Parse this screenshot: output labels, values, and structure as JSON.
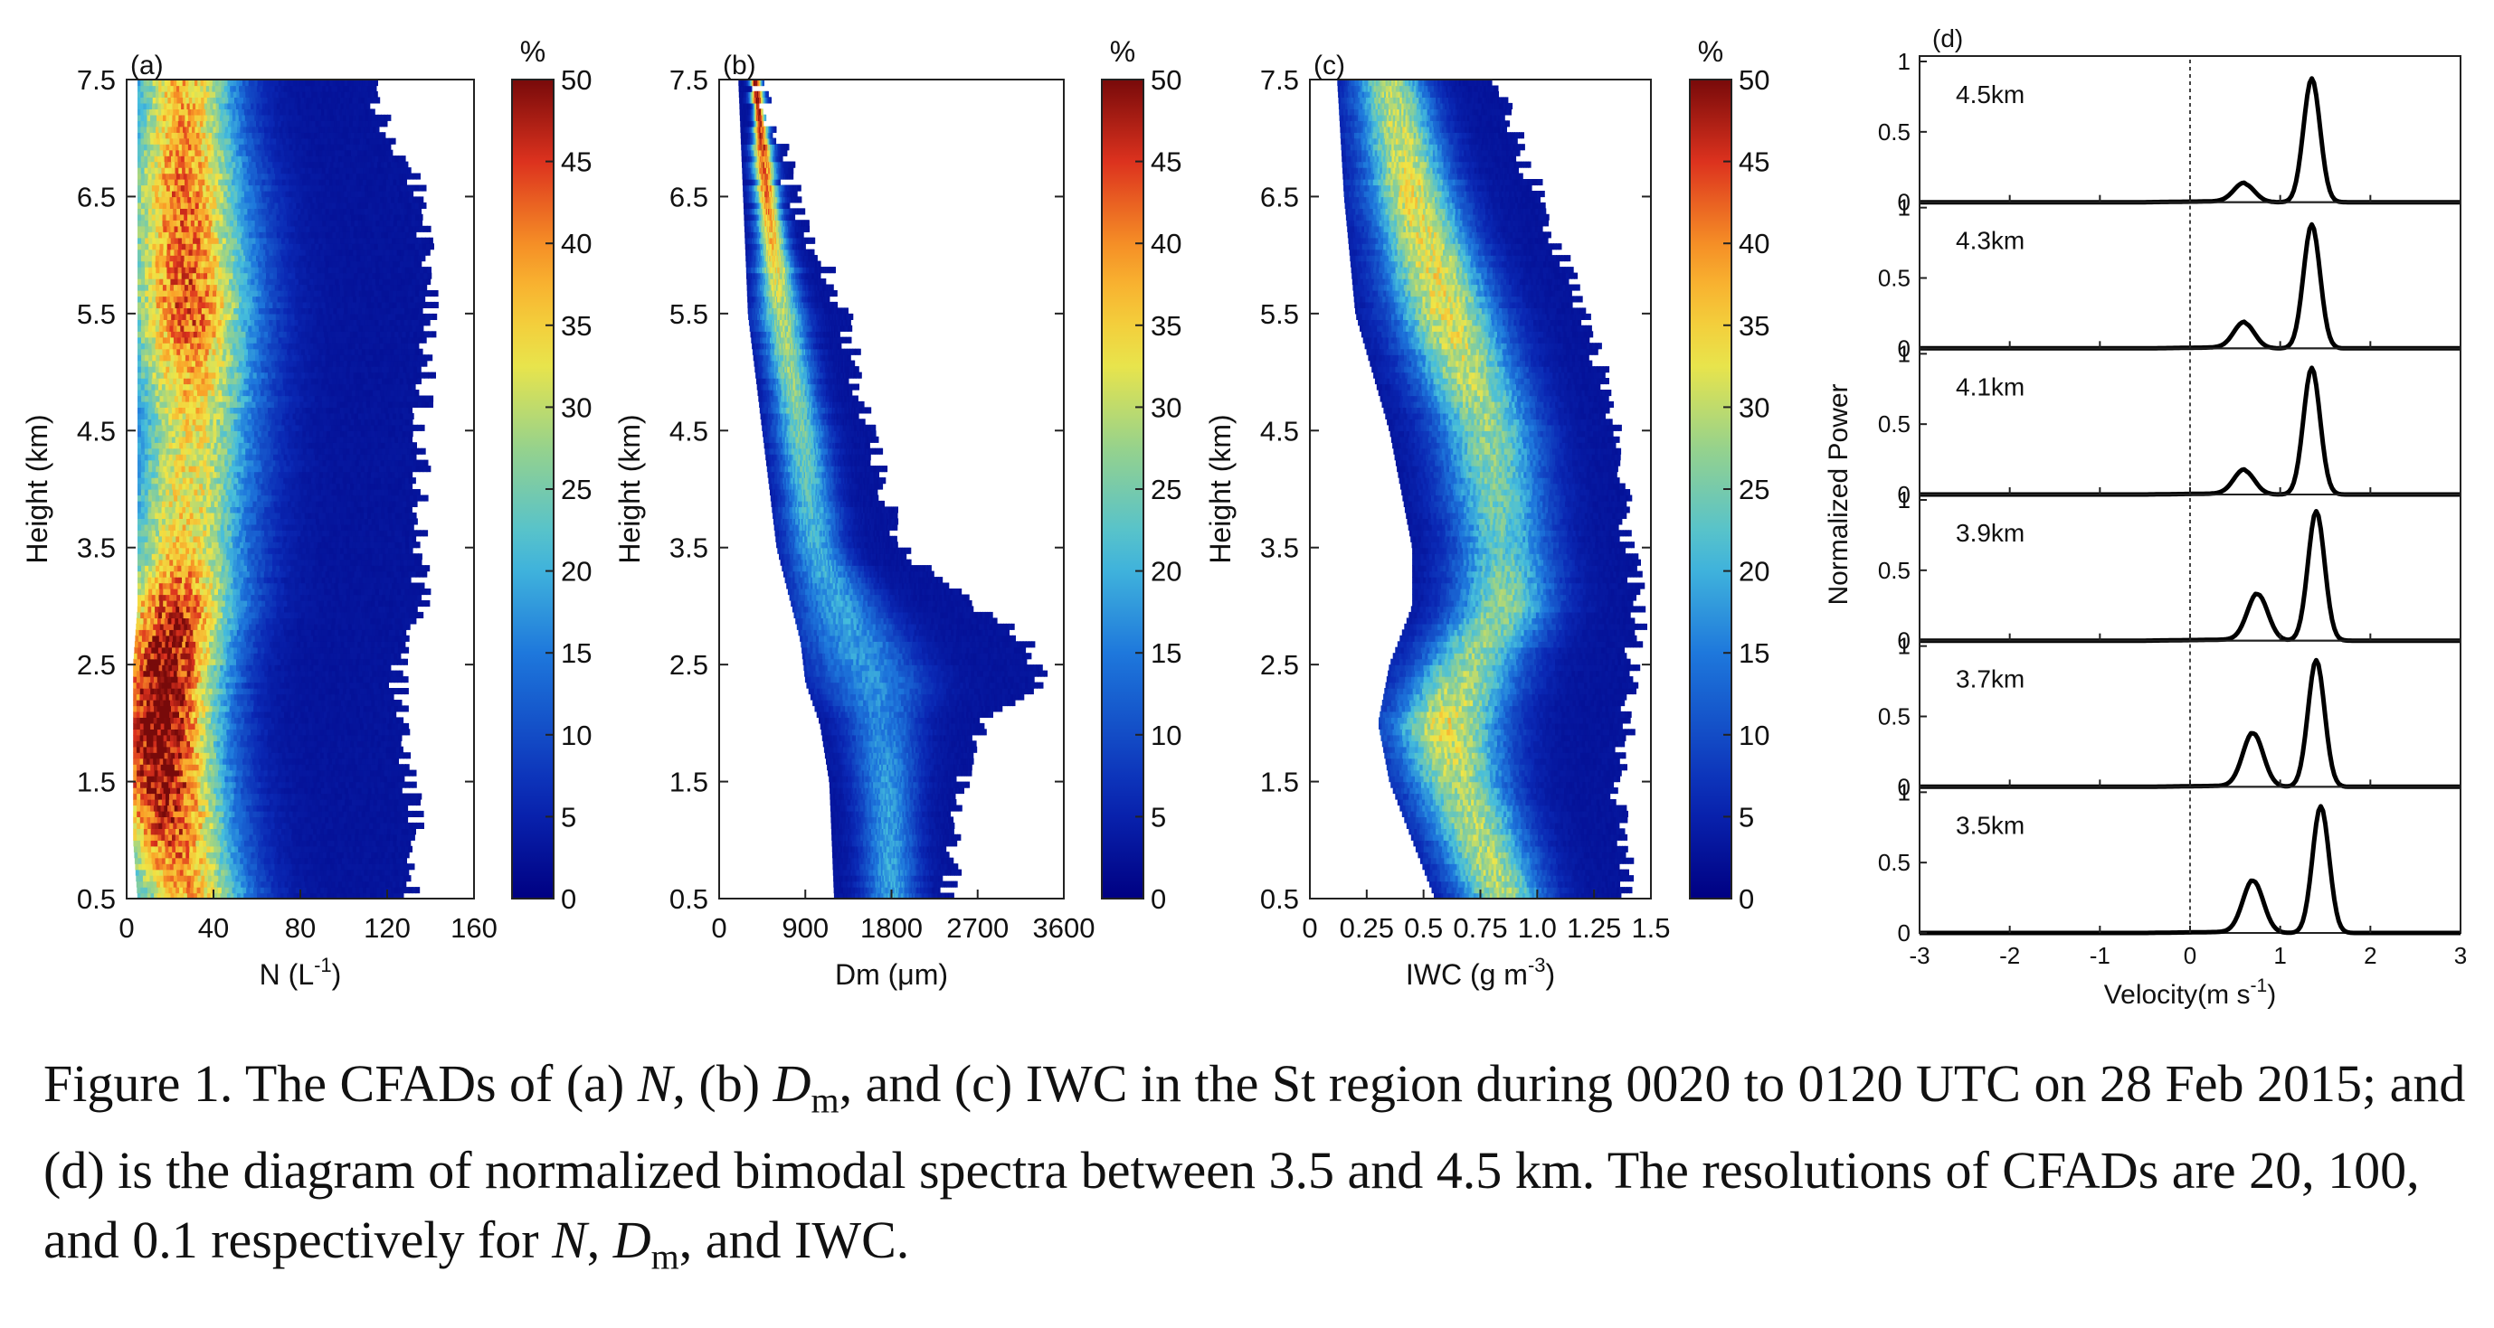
{
  "chart_data": [
    {
      "type": "heatmap",
      "panel_label": "(a)",
      "xlabel_main": "N (L",
      "xlabel_sup": "-1",
      "xlabel_end": ")",
      "ylabel": "Height (km)",
      "xlim": [
        0,
        160
      ],
      "ylim": [
        0.5,
        7.5
      ],
      "xticks": [
        "0",
        "40",
        "80",
        "120",
        "160"
      ],
      "yticks": [
        "0.5",
        "1.5",
        "2.5",
        "3.5",
        "4.5",
        "5.5",
        "6.5",
        "7.5"
      ],
      "colorbar": {
        "label": "%",
        "range": [
          0,
          50
        ],
        "ticks": [
          "0",
          "5",
          "10",
          "15",
          "20",
          "25",
          "30",
          "35",
          "40",
          "45",
          "50"
        ]
      },
      "profile": [
        {
          "height": 0.5,
          "peak_x": 28,
          "peak_pct": 34,
          "min_x": 5,
          "max_x": 135
        },
        {
          "height": 1.0,
          "peak_x": 20,
          "peak_pct": 40,
          "min_x": 3,
          "max_x": 140
        },
        {
          "height": 1.5,
          "peak_x": 16,
          "peak_pct": 46,
          "min_x": 3,
          "max_x": 135
        },
        {
          "height": 2.0,
          "peak_x": 15,
          "peak_pct": 49,
          "min_x": 3,
          "max_x": 130
        },
        {
          "height": 2.5,
          "peak_x": 18,
          "peak_pct": 47,
          "min_x": 3,
          "max_x": 130
        },
        {
          "height": 3.0,
          "peak_x": 22,
          "peak_pct": 42,
          "min_x": 5,
          "max_x": 140
        },
        {
          "height": 3.5,
          "peak_x": 26,
          "peak_pct": 32,
          "min_x": 5,
          "max_x": 140
        },
        {
          "height": 4.5,
          "peak_x": 30,
          "peak_pct": 30,
          "min_x": 5,
          "max_x": 140
        },
        {
          "height": 5.5,
          "peak_x": 28,
          "peak_pct": 40,
          "min_x": 5,
          "max_x": 145
        },
        {
          "height": 6.5,
          "peak_x": 26,
          "peak_pct": 38,
          "min_x": 5,
          "max_x": 140
        },
        {
          "height": 7.5,
          "peak_x": 26,
          "peak_pct": 34,
          "min_x": 5,
          "max_x": 115
        }
      ]
    },
    {
      "type": "heatmap",
      "panel_label": "(b)",
      "xlabel_main": "Dm (",
      "xlabel_mu": "μ",
      "xlabel_end": "m)",
      "ylabel": "Height (km)",
      "xlim": [
        0,
        3600
      ],
      "ylim": [
        0.5,
        7.5
      ],
      "xticks": [
        "0",
        "900",
        "1800",
        "2700",
        "3600"
      ],
      "yticks": [
        "0.5",
        "1.5",
        "2.5",
        "3.5",
        "4.5",
        "5.5",
        "6.5",
        "7.5"
      ],
      "colorbar": {
        "label": "%",
        "range": [
          0,
          50
        ],
        "ticks": [
          "0",
          "5",
          "10",
          "15",
          "20",
          "25",
          "30",
          "35",
          "40",
          "45",
          "50"
        ]
      },
      "profile": [
        {
          "height": 0.5,
          "peak_x": 1800,
          "peak_pct": 16,
          "min_x": 1200,
          "max_x": 2500
        },
        {
          "height": 1.5,
          "peak_x": 1750,
          "peak_pct": 15,
          "min_x": 1150,
          "max_x": 2650
        },
        {
          "height": 2.0,
          "peak_x": 1700,
          "peak_pct": 13,
          "min_x": 1050,
          "max_x": 2850
        },
        {
          "height": 2.35,
          "peak_x": 1600,
          "peak_pct": 14,
          "min_x": 900,
          "max_x": 3500
        },
        {
          "height": 2.7,
          "peak_x": 1400,
          "peak_pct": 15,
          "min_x": 850,
          "max_x": 3300
        },
        {
          "height": 3.5,
          "peak_x": 1000,
          "peak_pct": 17,
          "min_x": 600,
          "max_x": 2000
        },
        {
          "height": 4.5,
          "peak_x": 850,
          "peak_pct": 22,
          "min_x": 450,
          "max_x": 1650
        },
        {
          "height": 5.5,
          "peak_x": 650,
          "peak_pct": 26,
          "min_x": 300,
          "max_x": 1400
        },
        {
          "height": 6.5,
          "peak_x": 500,
          "peak_pct": 38,
          "min_x": 250,
          "max_x": 900
        },
        {
          "height": 7.5,
          "peak_x": 380,
          "peak_pct": 48,
          "min_x": 200,
          "max_x": 500
        }
      ]
    },
    {
      "type": "heatmap",
      "panel_label": "(c)",
      "xlabel_main": "IWC (g m",
      "xlabel_sup": "-3",
      "xlabel_end": ")",
      "ylabel": "Height (km)",
      "xlim": [
        0,
        1.5
      ],
      "ylim": [
        0.5,
        7.5
      ],
      "xticks": [
        "0",
        "0.25",
        "0.5",
        "0.75",
        "1.0",
        "1.25",
        "1.5"
      ],
      "yticks": [
        "0.5",
        "1.5",
        "2.5",
        "3.5",
        "4.5",
        "5.5",
        "6.5",
        "7.5"
      ],
      "colorbar": {
        "label": "%",
        "range": [
          0,
          50
        ],
        "ticks": [
          "0",
          "5",
          "10",
          "15",
          "20",
          "25",
          "30",
          "35",
          "40",
          "45",
          "50"
        ]
      },
      "profile": [
        {
          "height": 0.5,
          "peak_x": 0.85,
          "peak_pct": 26,
          "min_x": 0.55,
          "max_x": 1.45
        },
        {
          "height": 1.5,
          "peak_x": 0.65,
          "peak_pct": 26,
          "min_x": 0.35,
          "max_x": 1.4
        },
        {
          "height": 2.0,
          "peak_x": 0.6,
          "peak_pct": 30,
          "min_x": 0.3,
          "max_x": 1.45
        },
        {
          "height": 2.5,
          "peak_x": 0.7,
          "peak_pct": 24,
          "min_x": 0.35,
          "max_x": 1.45
        },
        {
          "height": 3.0,
          "peak_x": 0.85,
          "peak_pct": 24,
          "min_x": 0.45,
          "max_x": 1.5
        },
        {
          "height": 3.5,
          "peak_x": 0.85,
          "peak_pct": 20,
          "min_x": 0.45,
          "max_x": 1.45
        },
        {
          "height": 4.5,
          "peak_x": 0.78,
          "peak_pct": 24,
          "min_x": 0.35,
          "max_x": 1.4
        },
        {
          "height": 5.5,
          "peak_x": 0.6,
          "peak_pct": 30,
          "min_x": 0.2,
          "max_x": 1.25
        },
        {
          "height": 6.5,
          "peak_x": 0.45,
          "peak_pct": 30,
          "min_x": 0.15,
          "max_x": 1.05
        },
        {
          "height": 7.5,
          "peak_x": 0.35,
          "peak_pct": 26,
          "min_x": 0.12,
          "max_x": 0.85
        }
      ]
    },
    {
      "type": "line",
      "panel_label": "(d)",
      "xlabel_main": "Velocity(m s",
      "xlabel_sup": "-1",
      "xlabel_end": ")",
      "ylabel": "Normalized Power",
      "xlim": [
        -3,
        3
      ],
      "ylim": [
        0,
        1
      ],
      "xticks": [
        "-3",
        "-2",
        "-1",
        "0",
        "1",
        "2",
        "3"
      ],
      "yticks": [
        "0",
        "0.5",
        "1"
      ],
      "series": [
        {
          "name": "4.5km",
          "peak1_v": 0.6,
          "peak1_p": 0.13,
          "peak2_v": 1.35,
          "peak2_p": 0.88
        },
        {
          "name": "4.3km",
          "peak1_v": 0.6,
          "peak1_p": 0.18,
          "peak2_v": 1.35,
          "peak2_p": 0.88
        },
        {
          "name": "4.1km",
          "peak1_v": 0.6,
          "peak1_p": 0.17,
          "peak2_v": 1.35,
          "peak2_p": 0.9
        },
        {
          "name": "3.9km",
          "peak1_v": 0.75,
          "peak1_p": 0.33,
          "peak2_v": 1.4,
          "peak2_p": 0.92
        },
        {
          "name": "3.7km",
          "peak1_v": 0.7,
          "peak1_p": 0.38,
          "peak2_v": 1.4,
          "peak2_p": 0.9
        },
        {
          "name": "3.5km",
          "peak1_v": 0.7,
          "peak1_p": 0.37,
          "peak2_v": 1.45,
          "peak2_p": 0.9
        }
      ]
    }
  ],
  "caption": {
    "p1": "Figure 1. The CFADs of (a) ",
    "n1": "N",
    "p2": ", (b) ",
    "d1": "D",
    "d1sub": "m",
    "p3": ", and (c) IWC in the St region during 0020 to 0120 UTC on 28 Feb 2015; and (d) is the diagram of normalized bimodal spectra between 3.5 and 4.5 km. The resolutions of CFADs are 20, 100, and 0.1 respectively for ",
    "n2": "N",
    "p4": ", ",
    "d2": "D",
    "d2sub": "m",
    "p5": ", and IWC."
  }
}
